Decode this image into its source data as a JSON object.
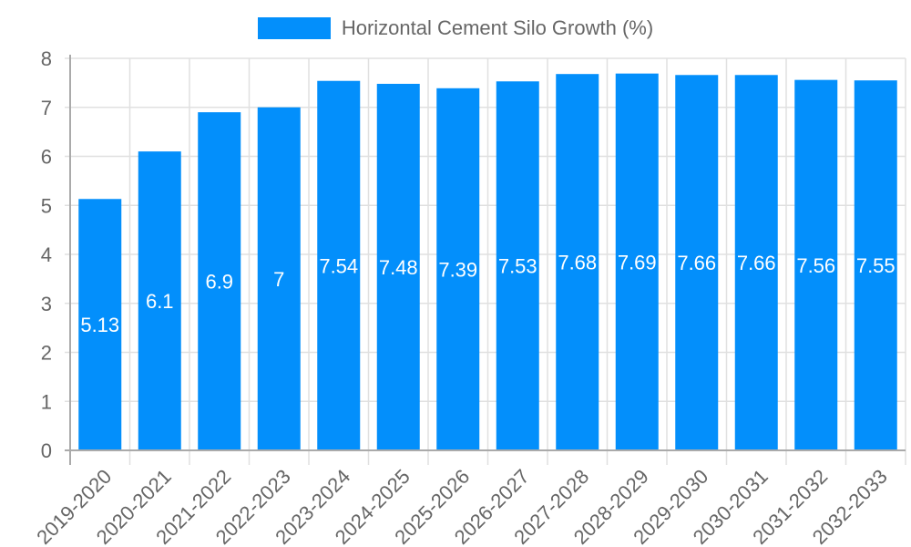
{
  "chart_data": {
    "type": "bar",
    "title": "",
    "legend": [
      {
        "label": "Horizontal Cement Silo Growth (%)",
        "color": "#038ffb"
      }
    ],
    "legend_position": "top",
    "categories": [
      "2019-2020",
      "2020-2021",
      "2021-2022",
      "2022-2023",
      "2023-2024",
      "2024-2025",
      "2025-2026",
      "2026-2027",
      "2027-2028",
      "2028-2029",
      "2029-2030",
      "2030-2031",
      "2031-2032",
      "2032-2033"
    ],
    "series": [
      {
        "name": "Horizontal Cement Silo Growth (%)",
        "color": "#038ffb",
        "values": [
          5.13,
          6.1,
          6.9,
          7,
          7.54,
          7.48,
          7.39,
          7.53,
          7.68,
          7.69,
          7.66,
          7.66,
          7.56,
          7.55
        ]
      }
    ],
    "data_labels": [
      "5.13",
      "6.1",
      "6.9",
      "7",
      "7.54",
      "7.48",
      "7.39",
      "7.53",
      "7.68",
      "7.69",
      "7.66",
      "7.66",
      "7.56",
      "7.55"
    ],
    "xlabel": "",
    "ylabel": "",
    "ylim": [
      0,
      8
    ],
    "yticks": [
      0,
      1,
      2,
      3,
      4,
      5,
      6,
      7,
      8
    ],
    "grid": true,
    "x_tick_rotation": -45
  }
}
